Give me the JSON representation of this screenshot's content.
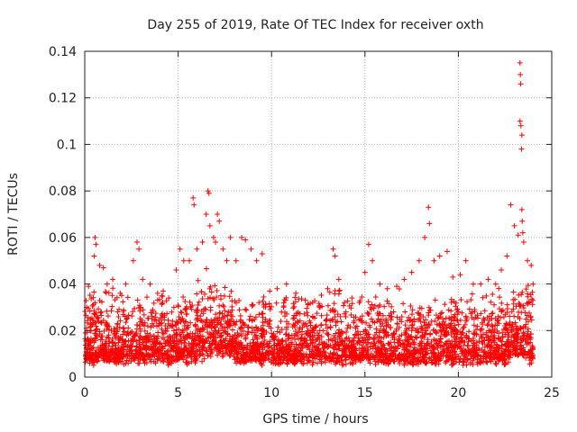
{
  "chart_data": {
    "type": "scatter",
    "title": "Day 255 of 2019, Rate Of TEC Index for receiver oxth",
    "xlabel": "GPS time / hours",
    "ylabel": "ROTI / TECUs",
    "xlim": [
      0,
      25
    ],
    "ylim": [
      0,
      0.14
    ],
    "xticks": [
      "0",
      "5",
      "10",
      "15",
      "20",
      "25"
    ],
    "yticks": [
      "0",
      "0.02",
      "0.04",
      "0.06",
      "0.08",
      "0.1",
      "0.12",
      "0.14"
    ],
    "grid": true,
    "marker": "+",
    "color": "#ff0000",
    "series": [
      {
        "name": "ROTI",
        "description_of_density": "dense band 0.005-0.035 TECU/s over 0-24 h",
        "points": [
          [
            0.1,
            0.03
          ],
          [
            0.2,
            0.039
          ],
          [
            0.3,
            0.025
          ],
          [
            0.5,
            0.052
          ],
          [
            0.55,
            0.06
          ],
          [
            0.6,
            0.057
          ],
          [
            0.8,
            0.048
          ],
          [
            1.0,
            0.047
          ],
          [
            1.2,
            0.04
          ],
          [
            1.5,
            0.042
          ],
          [
            1.9,
            0.036
          ],
          [
            2.2,
            0.04
          ],
          [
            2.6,
            0.05
          ],
          [
            2.8,
            0.058
          ],
          [
            2.9,
            0.055
          ],
          [
            3.1,
            0.042
          ],
          [
            3.5,
            0.04
          ],
          [
            3.9,
            0.036
          ],
          [
            4.2,
            0.037
          ],
          [
            4.5,
            0.034
          ],
          [
            4.9,
            0.046
          ],
          [
            5.1,
            0.055
          ],
          [
            5.3,
            0.05
          ],
          [
            5.6,
            0.05
          ],
          [
            5.8,
            0.077
          ],
          [
            5.85,
            0.074
          ],
          [
            6.0,
            0.055
          ],
          [
            6.3,
            0.058
          ],
          [
            6.5,
            0.07
          ],
          [
            6.6,
            0.08
          ],
          [
            6.65,
            0.079
          ],
          [
            6.7,
            0.065
          ],
          [
            6.9,
            0.06
          ],
          [
            7.0,
            0.058
          ],
          [
            7.1,
            0.07
          ],
          [
            7.2,
            0.067
          ],
          [
            7.4,
            0.055
          ],
          [
            7.6,
            0.05
          ],
          [
            7.8,
            0.06
          ],
          [
            8.1,
            0.05
          ],
          [
            8.4,
            0.06
          ],
          [
            8.6,
            0.059
          ],
          [
            8.9,
            0.055
          ],
          [
            9.2,
            0.05
          ],
          [
            9.5,
            0.053
          ],
          [
            9.9,
            0.037
          ],
          [
            10.3,
            0.038
          ],
          [
            10.8,
            0.04
          ],
          [
            11.3,
            0.036
          ],
          [
            11.8,
            0.033
          ],
          [
            12.2,
            0.032
          ],
          [
            12.6,
            0.03
          ],
          [
            13.0,
            0.038
          ],
          [
            13.3,
            0.055
          ],
          [
            13.4,
            0.052
          ],
          [
            13.6,
            0.042
          ],
          [
            13.9,
            0.032
          ],
          [
            14.3,
            0.034
          ],
          [
            14.7,
            0.032
          ],
          [
            15.0,
            0.045
          ],
          [
            15.2,
            0.057
          ],
          [
            15.4,
            0.05
          ],
          [
            15.8,
            0.04
          ],
          [
            16.2,
            0.038
          ],
          [
            16.7,
            0.039
          ],
          [
            17.1,
            0.042
          ],
          [
            17.5,
            0.045
          ],
          [
            17.9,
            0.05
          ],
          [
            18.2,
            0.06
          ],
          [
            18.4,
            0.073
          ],
          [
            18.45,
            0.066
          ],
          [
            18.7,
            0.05
          ],
          [
            19.0,
            0.052
          ],
          [
            19.4,
            0.054
          ],
          [
            19.7,
            0.043
          ],
          [
            20.1,
            0.044
          ],
          [
            20.4,
            0.05
          ],
          [
            20.8,
            0.04
          ],
          [
            21.2,
            0.04
          ],
          [
            21.6,
            0.042
          ],
          [
            22.0,
            0.04
          ],
          [
            22.3,
            0.046
          ],
          [
            22.6,
            0.052
          ],
          [
            22.8,
            0.074
          ],
          [
            23.0,
            0.065
          ],
          [
            23.2,
            0.061
          ],
          [
            23.3,
            0.135
          ],
          [
            23.32,
            0.13
          ],
          [
            23.34,
            0.126
          ],
          [
            23.3,
            0.11
          ],
          [
            23.35,
            0.108
          ],
          [
            23.4,
            0.104
          ],
          [
            23.38,
            0.098
          ],
          [
            23.4,
            0.072
          ],
          [
            23.42,
            0.067
          ],
          [
            23.45,
            0.062
          ],
          [
            23.5,
            0.058
          ],
          [
            23.7,
            0.05
          ],
          [
            23.9,
            0.048
          ],
          [
            24.0,
            0.04
          ]
        ]
      }
    ]
  }
}
